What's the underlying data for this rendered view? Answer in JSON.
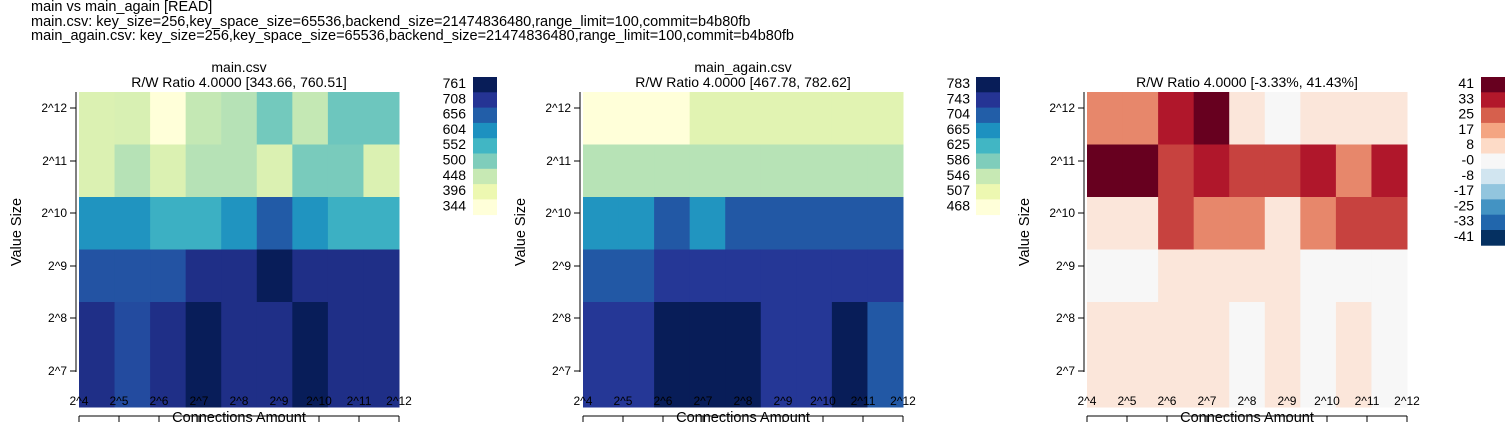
{
  "header": {
    "title": "main vs main_again [READ]",
    "line1": "main.csv: key_size=256,key_space_size=65536,backend_size=21474836480,range_limit=100,commit=b4b80fb",
    "line2": "main_again.csv: key_size=256,key_space_size=65536,backend_size=21474836480,range_limit=100,commit=b4b80fb"
  },
  "colors": {
    "YlGnBu": [
      "#ffffd9",
      "#edf8b1",
      "#c7e9b4",
      "#7fcdbb",
      "#41b6c4",
      "#1d91c0",
      "#225ea8",
      "#253494",
      "#081d58"
    ],
    "RdBu_r": [
      "#053061",
      "#2166ac",
      "#4393c3",
      "#92c5de",
      "#d1e5f0",
      "#f7f7f7",
      "#fddbc7",
      "#f4a582",
      "#d6604d",
      "#b2182b",
      "#67001f"
    ]
  },
  "chart_data": [
    {
      "type": "heatmap",
      "title": "main.csv",
      "subtitle": "R/W Ratio 4.0000 [343.66, 760.51]",
      "xlabel": "Connections Amount",
      "ylabel": "Value Size",
      "x_ticks": [
        "2^4",
        "2^5",
        "2^6",
        "2^7",
        "2^8",
        "2^9",
        "2^10",
        "2^11",
        "2^12"
      ],
      "y_ticks": [
        "2^12",
        "2^11",
        "2^10",
        "2^9",
        "2^8",
        "2^7"
      ],
      "rows": [
        {
          "label": "2^12",
          "span": [
            0,
            1
          ],
          "values": [
            420,
            425,
            344,
            450,
            460,
            510,
            450,
            515,
            515
          ]
        },
        {
          "label": "2^11",
          "span": [
            1,
            2
          ],
          "values": [
            420,
            460,
            420,
            460,
            460,
            420,
            505,
            505,
            420
          ]
        },
        {
          "label": "2^10",
          "span": [
            2,
            3
          ],
          "values": [
            600,
            600,
            560,
            560,
            600,
            660,
            600,
            560,
            560
          ]
        },
        {
          "label": "2^9",
          "span": [
            3,
            4
          ],
          "values": [
            670,
            670,
            670,
            720,
            720,
            760,
            720,
            720,
            720
          ]
        },
        {
          "label": "2^8",
          "span": [
            4,
            6
          ],
          "values": [
            720,
            680,
            720,
            760,
            720,
            720,
            760,
            720,
            720
          ]
        }
      ],
      "colorbar": {
        "palette": "YlGnBu",
        "min": 343.66,
        "max": 760.51,
        "ticks": [
          "761",
          "708",
          "656",
          "604",
          "552",
          "500",
          "448",
          "396",
          "344"
        ]
      }
    },
    {
      "type": "heatmap",
      "title": "main_again.csv",
      "subtitle": "R/W Ratio 4.0000 [467.78, 782.62]",
      "xlabel": "Connections Amount",
      "ylabel": "Value Size",
      "x_ticks": [
        "2^4",
        "2^5",
        "2^6",
        "2^7",
        "2^8",
        "2^9",
        "2^10",
        "2^11",
        "2^12"
      ],
      "y_ticks": [
        "2^12",
        "2^11",
        "2^10",
        "2^9",
        "2^8",
        "2^7"
      ],
      "rows": [
        {
          "label": "2^12",
          "span": [
            0,
            1
          ],
          "values": [
            468,
            468,
            468,
            520,
            520,
            520,
            520,
            520,
            520
          ]
        },
        {
          "label": "2^11",
          "span": [
            1,
            2
          ],
          "values": [
            555,
            555,
            555,
            555,
            555,
            555,
            555,
            555,
            555
          ]
        },
        {
          "label": "2^10",
          "span": [
            2,
            3
          ],
          "values": [
            660,
            660,
            710,
            660,
            710,
            710,
            710,
            710,
            710
          ]
        },
        {
          "label": "2^9",
          "span": [
            3,
            4
          ],
          "values": [
            710,
            710,
            740,
            740,
            740,
            740,
            740,
            740,
            740
          ]
        },
        {
          "label": "2^8",
          "span": [
            4,
            6
          ],
          "values": [
            740,
            740,
            783,
            783,
            783,
            740,
            740,
            783,
            710
          ]
        }
      ],
      "colorbar": {
        "palette": "YlGnBu",
        "min": 467.78,
        "max": 782.62,
        "ticks": [
          "783",
          "743",
          "704",
          "665",
          "625",
          "586",
          "546",
          "507",
          "468"
        ]
      }
    },
    {
      "type": "heatmap",
      "title": "",
      "subtitle": "R/W Ratio 4.0000 [-3.33%, 41.43%]",
      "xlabel": "Connections Amount",
      "ylabel": "Value Size",
      "x_ticks": [
        "2^4",
        "2^5",
        "2^6",
        "2^7",
        "2^8",
        "2^9",
        "2^10",
        "2^11",
        "2^12"
      ],
      "y_ticks": [
        "2^12",
        "2^11",
        "2^10",
        "2^9",
        "2^8",
        "2^7"
      ],
      "rows": [
        {
          "label": "2^12",
          "span": [
            0,
            1
          ],
          "values": [
            20,
            20,
            33,
            41,
            5,
            0,
            5,
            5,
            5
          ]
        },
        {
          "label": "2^11",
          "span": [
            1,
            2
          ],
          "values": [
            41,
            41,
            28,
            33,
            28,
            28,
            33,
            20,
            33
          ]
        },
        {
          "label": "2^10",
          "span": [
            2,
            3
          ],
          "values": [
            5,
            5,
            28,
            20,
            20,
            5,
            20,
            28,
            28
          ]
        },
        {
          "label": "2^9",
          "span": [
            3,
            4
          ],
          "values": [
            0,
            0,
            5,
            5,
            5,
            5,
            0,
            0,
            0
          ]
        },
        {
          "label": "2^8",
          "span": [
            4,
            6
          ],
          "values": [
            5,
            5,
            5,
            5,
            0,
            5,
            0,
            5,
            0
          ]
        }
      ],
      "colorbar": {
        "palette": "RdBu_r",
        "min": -41,
        "max": 41,
        "ticks": [
          "41",
          "33",
          "25",
          "17",
          "8",
          "-0",
          "-8",
          "-17",
          "-25",
          "-33",
          "-41"
        ]
      }
    }
  ]
}
